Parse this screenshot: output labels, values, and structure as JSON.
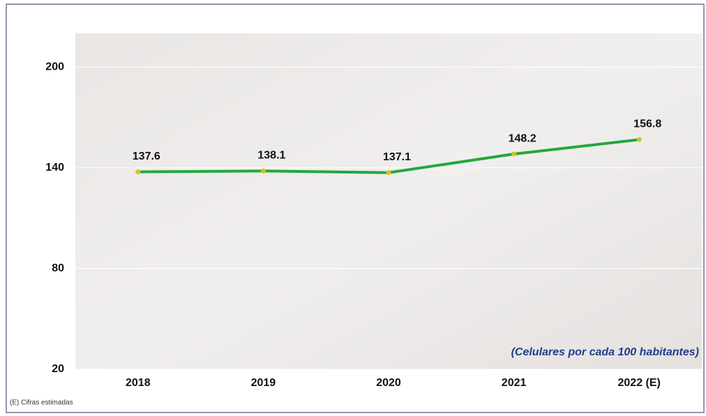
{
  "chart_data": {
    "type": "line",
    "categories": [
      "2018",
      "2019",
      "2020",
      "2021",
      "2022 (E)"
    ],
    "values": [
      137.6,
      138.1,
      137.1,
      148.2,
      156.8
    ],
    "color": "#22a83e",
    "marker_color": "#d4c21a",
    "ylim": [
      20,
      220
    ],
    "yticks": [
      20,
      80,
      140,
      200
    ],
    "grid": true,
    "annotation": "(Celulares por cada 100 habitantes)",
    "footnote": "(E) Cifras estimadas"
  }
}
